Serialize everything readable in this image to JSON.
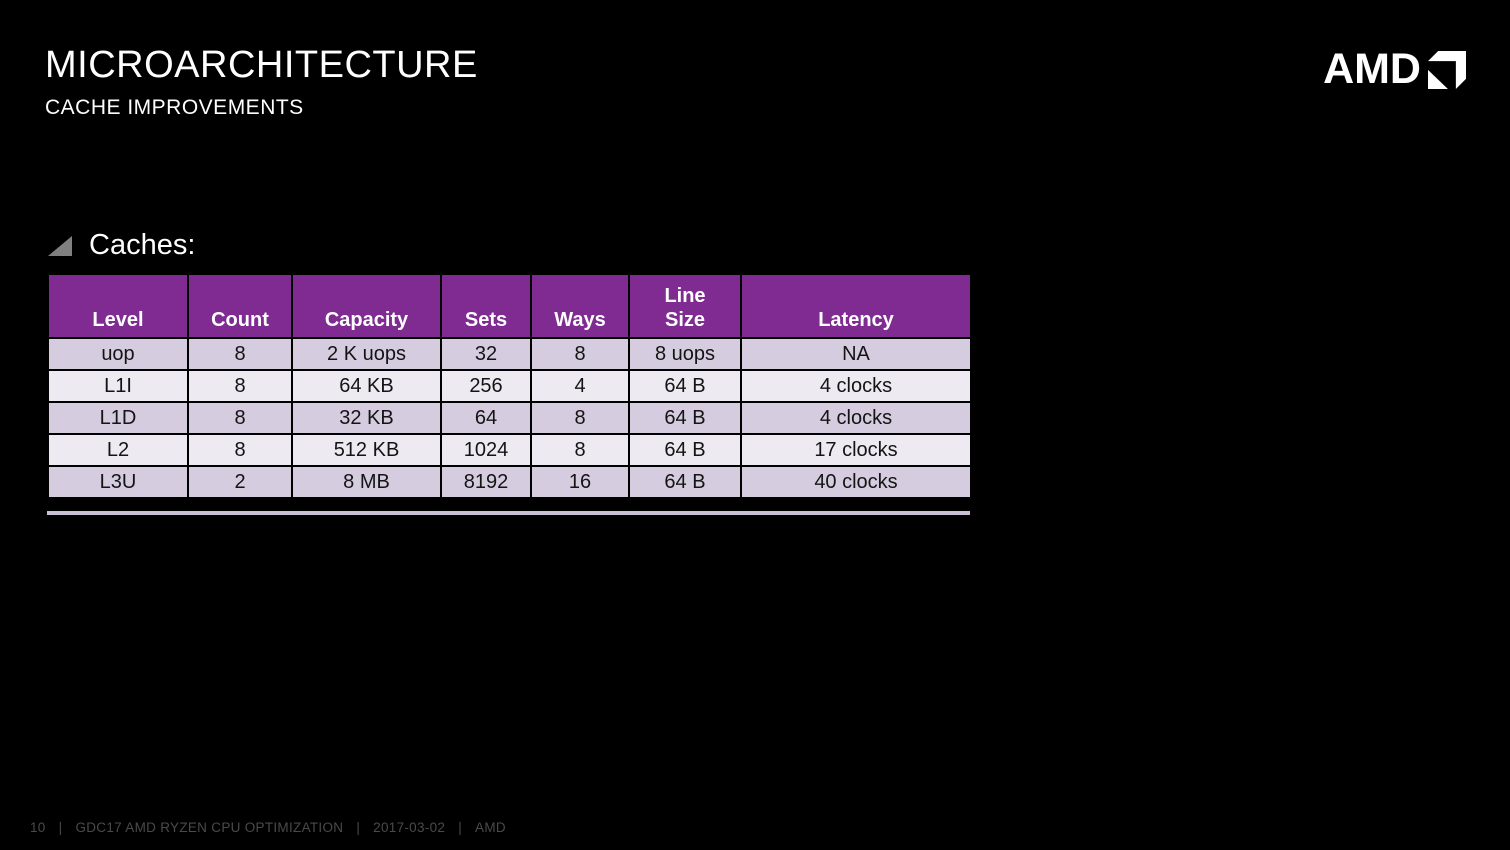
{
  "slide": {
    "title": "MICROARCHITECTURE",
    "subtitle": "CACHE IMPROVEMENTS"
  },
  "logo": {
    "wordmark": "AMD"
  },
  "section": {
    "heading": "Caches:"
  },
  "table": {
    "columns": [
      "Level",
      "Count",
      "Capacity",
      "Sets",
      "Ways",
      "Line\nSize",
      "Latency"
    ],
    "rows": [
      [
        "uop",
        "8",
        "2 K uops",
        "32",
        "8",
        "8 uops",
        "NA"
      ],
      [
        "L1I",
        "8",
        "64 KB",
        "256",
        "4",
        "64 B",
        "4 clocks"
      ],
      [
        "L1D",
        "8",
        "32 KB",
        "64",
        "8",
        "64 B",
        "4 clocks"
      ],
      [
        "L2",
        "8",
        "512 KB",
        "1024",
        "8",
        "64 B",
        "17 clocks"
      ],
      [
        "L3U",
        "2",
        "8 MB",
        "8192",
        "16",
        "64 B",
        "40 clocks"
      ]
    ]
  },
  "footer": {
    "page_number": "10",
    "separator": "|",
    "deck_title": "GDC17 AMD RYZEN CPU OPTIMIZATION",
    "date": "2017-03-02",
    "brand": "AMD"
  },
  "colors": {
    "background": "#000000",
    "header_purple": "#7F2B92",
    "row_dark": "#D5CCDF",
    "row_light": "#EDEAF2",
    "cell_text": "#141414",
    "footer_text": "#4A4A4A",
    "bullet_gray": "#808080",
    "white": "#FFFFFF"
  }
}
